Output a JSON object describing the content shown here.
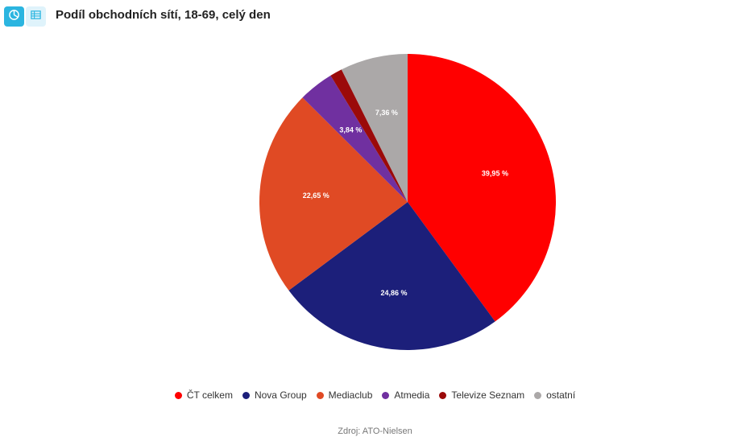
{
  "header": {
    "title": "Podíl obchodních sítí, 18-69, celý den",
    "toggles": [
      {
        "icon": "pie-chart-icon",
        "active": true
      },
      {
        "icon": "table-icon",
        "active": false
      }
    ]
  },
  "chart_data": {
    "type": "pie",
    "title": "Podíl obchodních sítí, 18-69, celý den",
    "start_angle_deg": 0,
    "direction": "clockwise",
    "slices": [
      {
        "name": "ČT celkem",
        "value": 39.95,
        "label": "39,95 %",
        "color": "#ff0000",
        "show_label": true
      },
      {
        "name": "Nova Group",
        "value": 24.86,
        "label": "24,86 %",
        "color": "#1c1f7a",
        "show_label": true
      },
      {
        "name": "Mediaclub",
        "value": 22.65,
        "label": "22,65 %",
        "color": "#e04a24",
        "show_label": true
      },
      {
        "name": "Atmedia",
        "value": 3.84,
        "label": "3,84 %",
        "color": "#7030a0",
        "show_label": true
      },
      {
        "name": "Televize Seznam",
        "value": 1.34,
        "label": "",
        "color": "#9b0a0a",
        "show_label": false
      },
      {
        "name": "ostatní",
        "value": 7.36,
        "label": "7,36 %",
        "color": "#aba8a8",
        "show_label": true
      }
    ],
    "legend_position": "bottom"
  },
  "footer": {
    "source": "Zdroj: ATO-Nielsen"
  }
}
